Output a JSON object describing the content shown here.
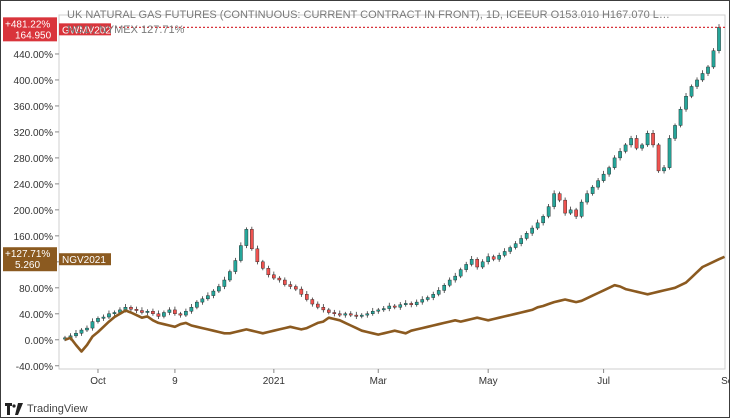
{
  "legend": {
    "line1_text": "UK NATURAL GAS FUTURES (CONTINUOUS: CURRENT CONTRACT IN FRONT), 1D, ICEEUR  O153.010  H167.070  L…",
    "line1_code": "GWMV2021",
    "line2_text": "NG1!, NYMEX  127.71%"
  },
  "footer": {
    "brand": "TradingView",
    "icon": "tradingview-logo-icon"
  },
  "colors": {
    "uk_candles_up": "#26a69a",
    "uk_candles_down": "#ef5350",
    "uk_badge": "#d9343b",
    "ng_line": "#8b5a20",
    "grid": "#e8e8e8"
  },
  "chart_data": {
    "type": "line",
    "title": "UK NATURAL GAS FUTURES (CONTINUOUS: CURRENT CONTRACT IN FRONT), 1D, ICEEUR",
    "y_unit": "%",
    "ylim": [
      -45,
      500
    ],
    "y_ticks": [
      "-40.00%",
      "0.00%",
      "40.00%",
      "80.00%",
      "120.00%",
      "160.00%",
      "200.00%",
      "240.00%",
      "280.00%",
      "320.00%",
      "360.00%",
      "400.00%",
      "440.00%"
    ],
    "x_ticks": [
      "Oct",
      "9",
      "2021",
      "Mar",
      "May",
      "Jul",
      "Sep"
    ],
    "x_tick_index": [
      6,
      20,
      38,
      57,
      77,
      98,
      121
    ],
    "grid": false,
    "series": [
      {
        "name": "GWMV2021",
        "kind": "candlestick",
        "last_label_pct": "+481.22%",
        "last_label_price": "164.950",
        "values": [
          3,
          6,
          10,
          15,
          18,
          28,
          33,
          35,
          40,
          42,
          46,
          50,
          47,
          45,
          42,
          44,
          40,
          36,
          42,
          46,
          40,
          38,
          44,
          50,
          58,
          63,
          68,
          75,
          82,
          92,
          105,
          122,
          145,
          170,
          140,
          120,
          110,
          100,
          95,
          92,
          85,
          82,
          78,
          70,
          62,
          55,
          50,
          46,
          42,
          40,
          38,
          40,
          38,
          36,
          38,
          40,
          44,
          46,
          48,
          52,
          50,
          54,
          56,
          54,
          58,
          62,
          65,
          70,
          76,
          84,
          92,
          98,
          108,
          116,
          124,
          112,
          120,
          128,
          124,
          130,
          136,
          142,
          148,
          156,
          164,
          172,
          180,
          190,
          205,
          225,
          215,
          195,
          200,
          190,
          212,
          225,
          235,
          245,
          255,
          265,
          280,
          290,
          300,
          310,
          295,
          300,
          318,
          300,
          260,
          265,
          310,
          330,
          355,
          375,
          390,
          400,
          410,
          420,
          445,
          481
        ]
      },
      {
        "name": "NGV2021",
        "kind": "line",
        "last_label_pct": "+127.71%",
        "last_label_price": "5.260",
        "values": [
          0,
          3,
          -8,
          -18,
          -8,
          5,
          12,
          20,
          28,
          35,
          40,
          45,
          42,
          38,
          34,
          36,
          30,
          26,
          24,
          22,
          20,
          24,
          26,
          22,
          20,
          18,
          16,
          14,
          12,
          10,
          10,
          12,
          14,
          16,
          14,
          12,
          10,
          12,
          14,
          16,
          18,
          20,
          18,
          16,
          18,
          22,
          26,
          28,
          34,
          32,
          30,
          26,
          22,
          18,
          14,
          12,
          10,
          8,
          10,
          12,
          14,
          12,
          10,
          14,
          16,
          18,
          20,
          22,
          24,
          26,
          28,
          30,
          28,
          30,
          32,
          34,
          32,
          30,
          32,
          34,
          36,
          38,
          40,
          42,
          44,
          46,
          50,
          52,
          55,
          58,
          60,
          62,
          60,
          58,
          60,
          64,
          68,
          72,
          76,
          80,
          84,
          82,
          78,
          76,
          74,
          72,
          70,
          72,
          74,
          76,
          78,
          80,
          84,
          88,
          96,
          104,
          112,
          116,
          120,
          124,
          127.71
        ]
      }
    ]
  }
}
